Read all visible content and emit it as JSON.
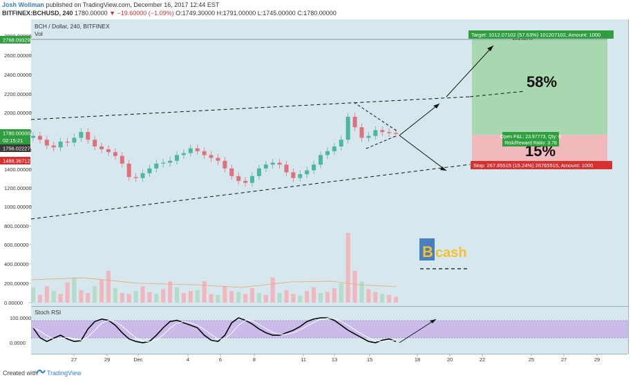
{
  "header": {
    "author": "Josh Wollman",
    "published": "published on TradingView.com, December 16, 2017 12:44 EST",
    "symbol": "BITFINEX:BCHUSD, 240",
    "last": "1780.00000",
    "change": "▼ −19.60000 (−1.09%)",
    "ohlc": "O:1749.30000 H:1791.00000 L:1745.00000 C:1780.00000"
  },
  "chart": {
    "title": "BCH / Dollar, 240, BITFINEX",
    "vol_label": "Vol",
    "top_price_tag": "2768.09329",
    "last_price_tag": "1780.00000",
    "countdown_tag": "02:15:21",
    "tag_1756": "1756.02227",
    "tag_1488": "1488.36712",
    "target_label": "Target: 1012.07102 (57.63%) 101207102, Amount: 1000",
    "stop_label": "Stop: 267.65515 (15.24%) 26765515, Amount: 1000",
    "pnl_line1": "Open P&L: 23.97773, Qty: 0",
    "pnl_line2": "Risk/Reward Ratio: 3.78",
    "fib_label": "161.80%",
    "pct_up": "58%",
    "pct_down": "15%",
    "bcash_b": "B",
    "bcash_rest": "cash",
    "stoch_label": "Stoch RSI",
    "colors": {
      "up": "#4db6a0",
      "down": "#e0707b",
      "target": "#2e9e3e",
      "stop": "#d63031",
      "stoch_band": "#c8b3ea"
    }
  },
  "chart_data": [
    {
      "type": "candlestick",
      "title": "BCH / Dollar, 240, BITFINEX",
      "y_ticks": [
        "2800.00000",
        "2600.00000",
        "2400.00000",
        "2200.00000",
        "2000.00000",
        "1800.00000",
        "1600.00000",
        "1400.00000",
        "1200.00000",
        "1000.00000",
        "800.00000",
        "600.00000",
        "400.00000",
        "200.00000",
        "0.00000"
      ],
      "x_ticks": [
        "27",
        "29",
        "Dec",
        "4",
        "6",
        "8",
        "11",
        "13",
        "15",
        "18",
        "20",
        "22",
        "25",
        "27",
        "29"
      ],
      "ylim": [
        0,
        2830
      ],
      "closes": [
        1760,
        1720,
        1660,
        1640,
        1700,
        1690,
        1740,
        1800,
        1720,
        1650,
        1620,
        1590,
        1550,
        1470,
        1330,
        1320,
        1370,
        1420,
        1470,
        1480,
        1500,
        1560,
        1580,
        1630,
        1600,
        1560,
        1530,
        1500,
        1420,
        1340,
        1290,
        1270,
        1340,
        1420,
        1460,
        1480,
        1460,
        1380,
        1320,
        1360,
        1400,
        1460,
        1560,
        1600,
        1650,
        1720,
        1960,
        1850,
        1740,
        1760,
        1820,
        1800,
        1790,
        1780
      ]
    },
    {
      "type": "bar",
      "title": "Vol",
      "y_ticks": [
        "600.00000",
        "400.00000",
        "200.00000",
        "0.00000"
      ],
      "values": [
        160,
        80,
        170,
        120,
        90,
        210,
        260,
        130,
        100,
        170,
        240,
        330,
        150,
        100,
        90,
        120,
        170,
        110,
        90,
        140,
        220,
        160,
        100,
        120,
        130,
        220,
        90,
        80,
        170,
        120,
        110,
        90,
        150,
        100,
        80,
        260,
        100,
        130,
        90,
        70,
        120,
        160,
        100,
        110,
        150,
        200,
        720,
        330,
        220,
        140,
        110,
        90,
        80,
        60
      ]
    },
    {
      "type": "line",
      "title": "Stoch RSI",
      "y_ticks": [
        "100.0000",
        "0.0000"
      ],
      "values": [
        60,
        20,
        5,
        18,
        30,
        15,
        5,
        8,
        55,
        85,
        95,
        90,
        70,
        40,
        15,
        5,
        0,
        5,
        30,
        60,
        85,
        90,
        80,
        70,
        60,
        30,
        10,
        5,
        30,
        80,
        100,
        90,
        75,
        55,
        40,
        30,
        30,
        40,
        50,
        65,
        85,
        95,
        100,
        100,
        90,
        70,
        50,
        35,
        20,
        5,
        0,
        10,
        15,
        5
      ]
    }
  ]
}
